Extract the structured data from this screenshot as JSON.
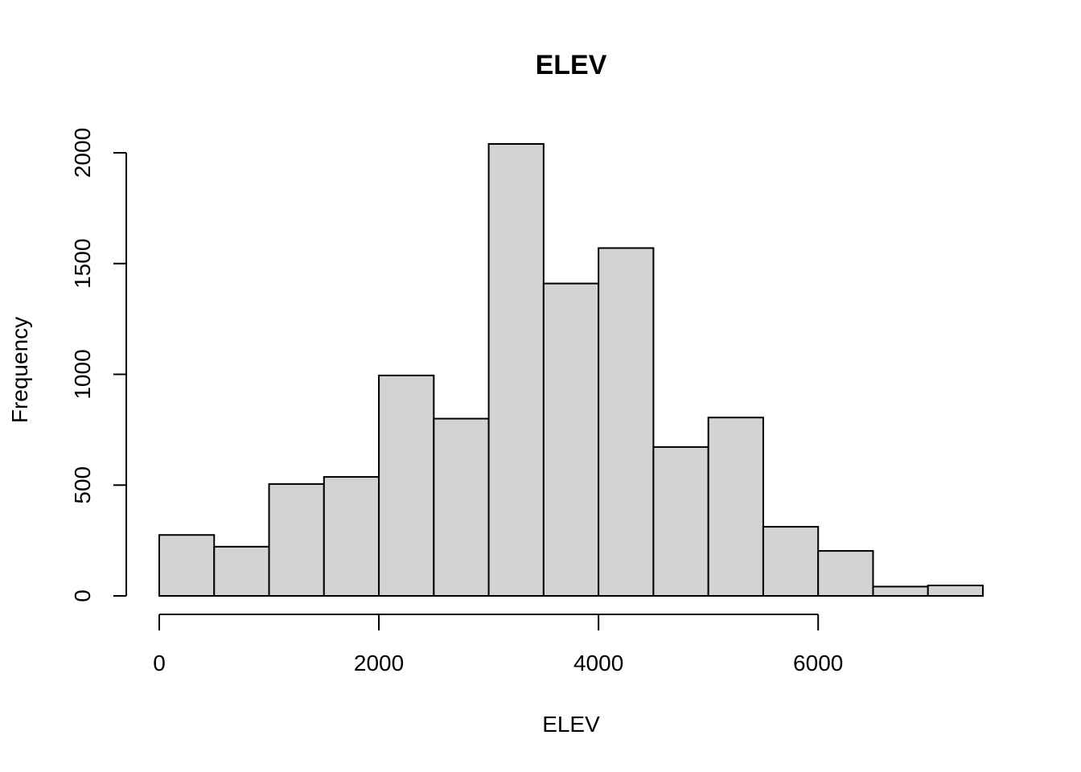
{
  "chart_data": {
    "type": "bar",
    "title": "ELEV",
    "xlabel": "ELEV",
    "ylabel": "Frequency",
    "bin_edges": [
      0,
      500,
      1000,
      1500,
      2000,
      2500,
      3000,
      3500,
      4000,
      4500,
      5000,
      5500,
      6000,
      6500,
      7000,
      7500
    ],
    "values": [
      275,
      222,
      505,
      537,
      995,
      800,
      2040,
      1410,
      1570,
      672,
      805,
      312,
      203,
      42,
      47
    ],
    "x_ticks": [
      0,
      2000,
      4000,
      6000
    ],
    "y_ticks": [
      0,
      500,
      1000,
      1500,
      2000
    ],
    "xlim": [
      0,
      7500
    ],
    "ylim": [
      0,
      2080
    ],
    "grid": false,
    "bar_color": "#d3d3d3",
    "edge_color": "#000000"
  }
}
